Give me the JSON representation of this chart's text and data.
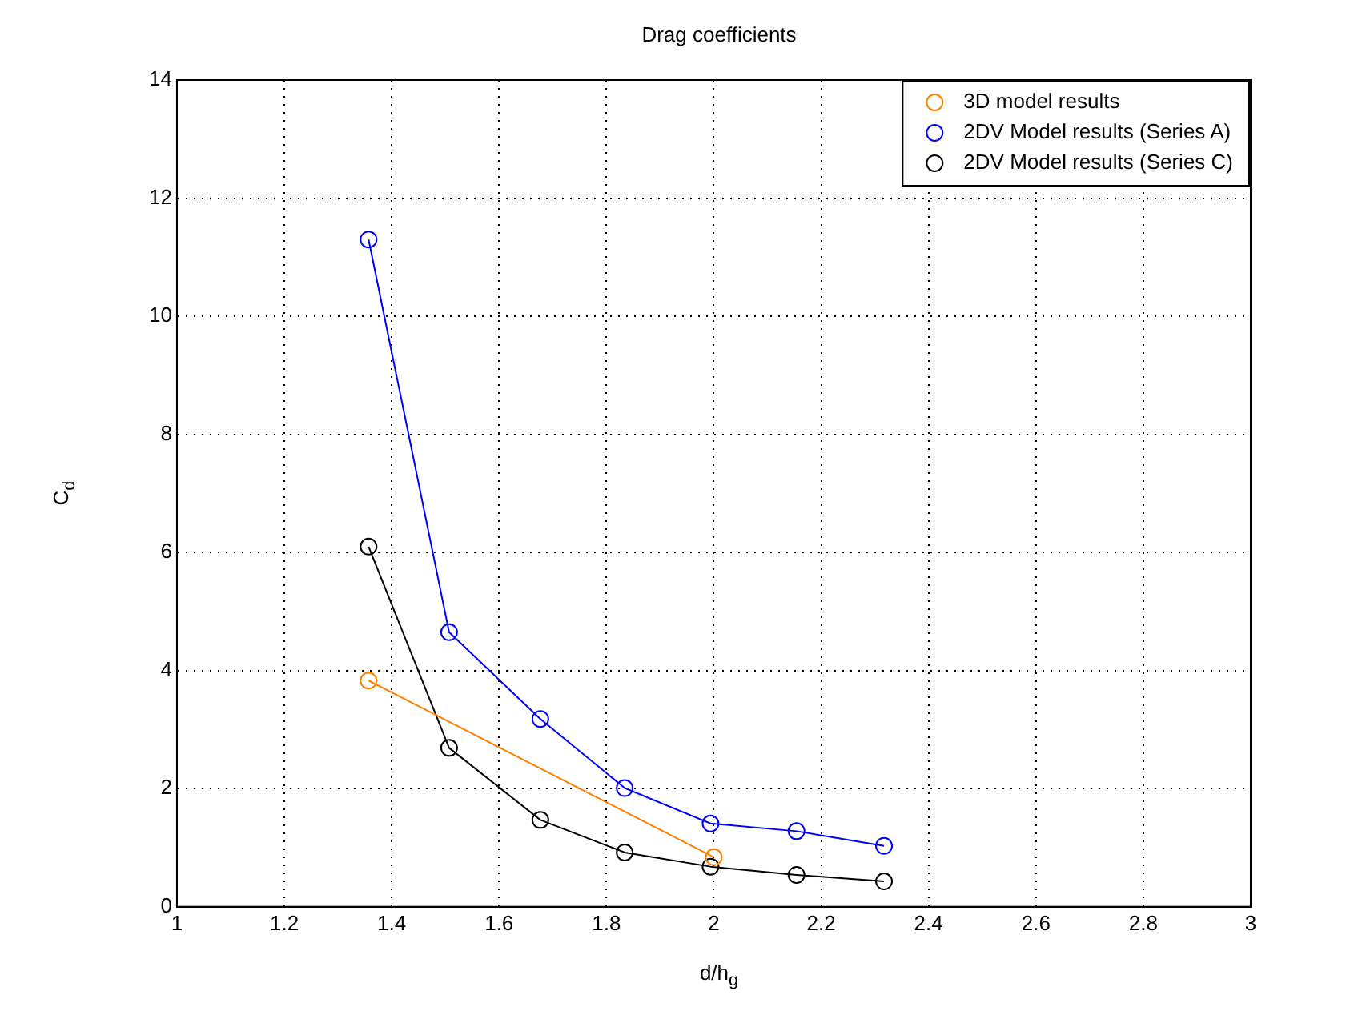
{
  "chart_data": {
    "type": "line",
    "title": "Drag coefficients",
    "xlabel": "d/h$_{g}$",
    "ylabel": "C$_{d}$",
    "xlim": [
      1,
      3
    ],
    "xticks": [
      1,
      1.2,
      1.4,
      1.6,
      1.8,
      2,
      2.2,
      2.4,
      2.6,
      2.8,
      3
    ],
    "ylim": [
      0,
      14
    ],
    "yticks": [
      0,
      2,
      4,
      6,
      8,
      10,
      12,
      14
    ],
    "grid": true,
    "legend": "top right",
    "marker": "circle",
    "line_style": "solid",
    "series": [
      {
        "name": "3D model results",
        "color": "#ff8000",
        "x": [
          1.357,
          2.0
        ],
        "values": [
          3.83,
          0.84
        ]
      },
      {
        "name": "2DV Model results (Series A)",
        "color": "#0000ff",
        "x": [
          1.357,
          1.507,
          1.677,
          1.834,
          1.994,
          2.154,
          2.317
        ],
        "values": [
          11.3,
          4.65,
          3.18,
          2.01,
          1.41,
          1.28,
          1.03
        ]
      },
      {
        "name": "2DV Model results (Series C)",
        "color": "#000000",
        "x": [
          1.357,
          1.507,
          1.677,
          1.834,
          1.994,
          2.154,
          2.317
        ],
        "values": [
          6.1,
          2.69,
          1.47,
          0.92,
          0.68,
          0.54,
          0.43
        ]
      }
    ]
  }
}
